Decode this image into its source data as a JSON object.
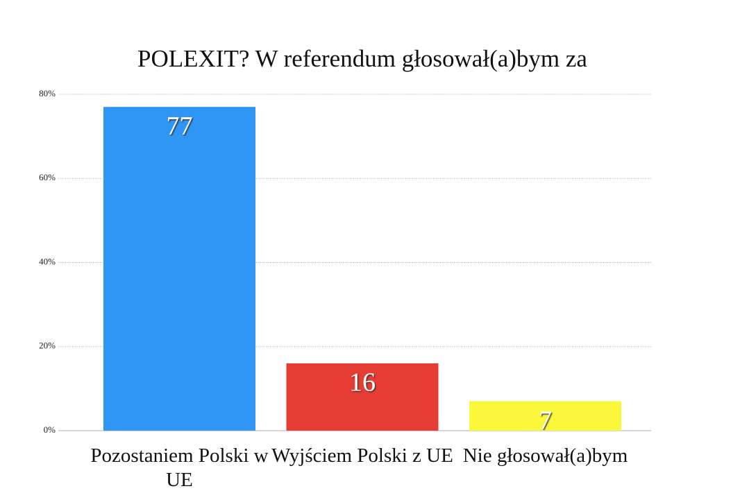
{
  "chart_data": {
    "type": "bar",
    "title": "POLEXIT? W referendum głosował(a)bym za",
    "categories": [
      "Pozostaniem Polski w UE",
      "Wyjściem Polski z UE",
      "Nie głosował(a)bym"
    ],
    "values": [
      77,
      16,
      7
    ],
    "colors": [
      "#2f96f5",
      "#e53d33",
      "#fbf73a"
    ],
    "ylim": [
      0,
      80
    ],
    "yticks": [
      {
        "value": 0,
        "label": "0%"
      },
      {
        "value": 20,
        "label": "20%"
      },
      {
        "value": 40,
        "label": "40%"
      },
      {
        "value": 60,
        "label": "60%"
      },
      {
        "value": 80,
        "label": "80%"
      }
    ],
    "grid": true
  }
}
